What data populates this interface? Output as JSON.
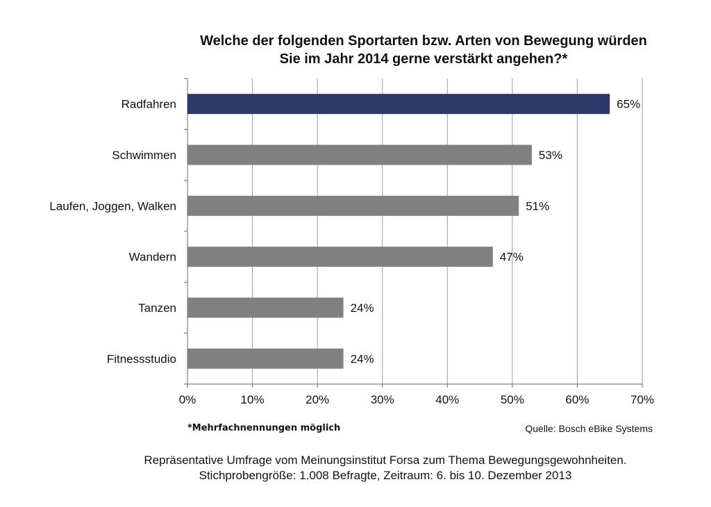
{
  "chart_data": {
    "type": "bar",
    "orientation": "horizontal",
    "title": [
      "Welche der folgenden Sportarten bzw. Arten von Bewegung würden",
      "Sie im Jahr 2014 gerne verstärkt angehen?*"
    ],
    "categories": [
      "Radfahren",
      "Schwimmen",
      "Laufen, Joggen, Walken",
      "Wandern",
      "Tanzen",
      "Fitnessstudio"
    ],
    "values": [
      65,
      53,
      51,
      47,
      24,
      24
    ],
    "value_labels": [
      "65%",
      "53%",
      "51%",
      "47%",
      "24%",
      "24%"
    ],
    "xlim": [
      0,
      70
    ],
    "x_ticks": [
      0,
      10,
      20,
      30,
      40,
      50,
      60,
      70
    ],
    "x_tick_labels": [
      "0%",
      "10%",
      "20%",
      "30%",
      "40%",
      "50%",
      "60%",
      "70%"
    ],
    "grid": "vertical",
    "colors": {
      "highlight": "#2E386B",
      "default": "#808080",
      "grid": "#9a9a9a",
      "axis": "#666666"
    }
  },
  "note": "*Mehrfachnennungen möglich",
  "source": "Quelle: Bosch eBike Systems",
  "footer": [
    "Repräsentative Umfrage vom Meinungsinstitut Forsa zum Thema Bewegungsgewohnheiten.",
    "Stichprobengröße: 1.008 Befragte, Zeitraum: 6. bis 10. Dezember 2013"
  ]
}
